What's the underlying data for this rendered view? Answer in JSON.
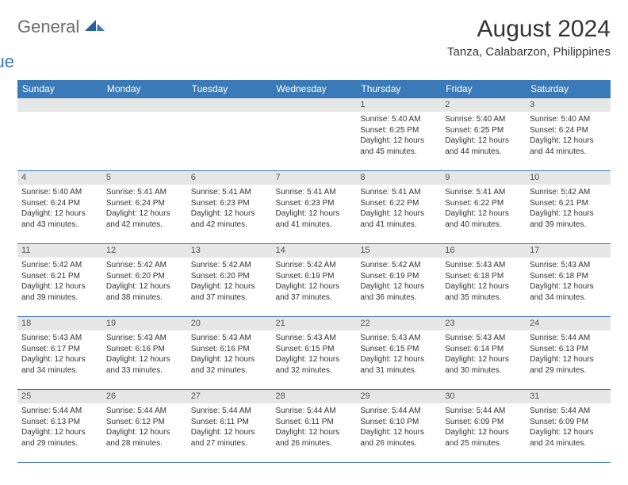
{
  "logo": {
    "general": "General",
    "blue": "Blue"
  },
  "header": {
    "title": "August 2024",
    "subtitle": "Tanza, Calabarzon, Philippines"
  },
  "colors": {
    "header_bg": "#3b7ab8",
    "header_fg": "#ffffff",
    "daynum_bg": "#e6e6e6",
    "daynum_fg": "#555555",
    "border": "#3b7ab8",
    "text": "#333333",
    "logo_gray": "#6b6b6b",
    "logo_blue": "#3b7ab8",
    "page_bg": "#ffffff"
  },
  "typography": {
    "title_fontsize": 30,
    "subtitle_fontsize": 15,
    "dayheader_fontsize": 12,
    "daynum_fontsize": 11,
    "dayinfo_fontsize": 10,
    "font_family": "Arial"
  },
  "calendar": {
    "type": "table",
    "columns": [
      "Sunday",
      "Monday",
      "Tuesday",
      "Wednesday",
      "Thursday",
      "Friday",
      "Saturday"
    ],
    "weeks": [
      [
        {
          "num": "",
          "sunrise": "",
          "sunset": "",
          "daylight": ""
        },
        {
          "num": "",
          "sunrise": "",
          "sunset": "",
          "daylight": ""
        },
        {
          "num": "",
          "sunrise": "",
          "sunset": "",
          "daylight": ""
        },
        {
          "num": "",
          "sunrise": "",
          "sunset": "",
          "daylight": ""
        },
        {
          "num": "1",
          "sunrise": "Sunrise: 5:40 AM",
          "sunset": "Sunset: 6:25 PM",
          "daylight": "Daylight: 12 hours and 45 minutes."
        },
        {
          "num": "2",
          "sunrise": "Sunrise: 5:40 AM",
          "sunset": "Sunset: 6:25 PM",
          "daylight": "Daylight: 12 hours and 44 minutes."
        },
        {
          "num": "3",
          "sunrise": "Sunrise: 5:40 AM",
          "sunset": "Sunset: 6:24 PM",
          "daylight": "Daylight: 12 hours and 44 minutes."
        }
      ],
      [
        {
          "num": "4",
          "sunrise": "Sunrise: 5:40 AM",
          "sunset": "Sunset: 6:24 PM",
          "daylight": "Daylight: 12 hours and 43 minutes."
        },
        {
          "num": "5",
          "sunrise": "Sunrise: 5:41 AM",
          "sunset": "Sunset: 6:24 PM",
          "daylight": "Daylight: 12 hours and 42 minutes."
        },
        {
          "num": "6",
          "sunrise": "Sunrise: 5:41 AM",
          "sunset": "Sunset: 6:23 PM",
          "daylight": "Daylight: 12 hours and 42 minutes."
        },
        {
          "num": "7",
          "sunrise": "Sunrise: 5:41 AM",
          "sunset": "Sunset: 6:23 PM",
          "daylight": "Daylight: 12 hours and 41 minutes."
        },
        {
          "num": "8",
          "sunrise": "Sunrise: 5:41 AM",
          "sunset": "Sunset: 6:22 PM",
          "daylight": "Daylight: 12 hours and 41 minutes."
        },
        {
          "num": "9",
          "sunrise": "Sunrise: 5:41 AM",
          "sunset": "Sunset: 6:22 PM",
          "daylight": "Daylight: 12 hours and 40 minutes."
        },
        {
          "num": "10",
          "sunrise": "Sunrise: 5:42 AM",
          "sunset": "Sunset: 6:21 PM",
          "daylight": "Daylight: 12 hours and 39 minutes."
        }
      ],
      [
        {
          "num": "11",
          "sunrise": "Sunrise: 5:42 AM",
          "sunset": "Sunset: 6:21 PM",
          "daylight": "Daylight: 12 hours and 39 minutes."
        },
        {
          "num": "12",
          "sunrise": "Sunrise: 5:42 AM",
          "sunset": "Sunset: 6:20 PM",
          "daylight": "Daylight: 12 hours and 38 minutes."
        },
        {
          "num": "13",
          "sunrise": "Sunrise: 5:42 AM",
          "sunset": "Sunset: 6:20 PM",
          "daylight": "Daylight: 12 hours and 37 minutes."
        },
        {
          "num": "14",
          "sunrise": "Sunrise: 5:42 AM",
          "sunset": "Sunset: 6:19 PM",
          "daylight": "Daylight: 12 hours and 37 minutes."
        },
        {
          "num": "15",
          "sunrise": "Sunrise: 5:42 AM",
          "sunset": "Sunset: 6:19 PM",
          "daylight": "Daylight: 12 hours and 36 minutes."
        },
        {
          "num": "16",
          "sunrise": "Sunrise: 5:43 AM",
          "sunset": "Sunset: 6:18 PM",
          "daylight": "Daylight: 12 hours and 35 minutes."
        },
        {
          "num": "17",
          "sunrise": "Sunrise: 5:43 AM",
          "sunset": "Sunset: 6:18 PM",
          "daylight": "Daylight: 12 hours and 34 minutes."
        }
      ],
      [
        {
          "num": "18",
          "sunrise": "Sunrise: 5:43 AM",
          "sunset": "Sunset: 6:17 PM",
          "daylight": "Daylight: 12 hours and 34 minutes."
        },
        {
          "num": "19",
          "sunrise": "Sunrise: 5:43 AM",
          "sunset": "Sunset: 6:16 PM",
          "daylight": "Daylight: 12 hours and 33 minutes."
        },
        {
          "num": "20",
          "sunrise": "Sunrise: 5:43 AM",
          "sunset": "Sunset: 6:16 PM",
          "daylight": "Daylight: 12 hours and 32 minutes."
        },
        {
          "num": "21",
          "sunrise": "Sunrise: 5:43 AM",
          "sunset": "Sunset: 6:15 PM",
          "daylight": "Daylight: 12 hours and 32 minutes."
        },
        {
          "num": "22",
          "sunrise": "Sunrise: 5:43 AM",
          "sunset": "Sunset: 6:15 PM",
          "daylight": "Daylight: 12 hours and 31 minutes."
        },
        {
          "num": "23",
          "sunrise": "Sunrise: 5:43 AM",
          "sunset": "Sunset: 6:14 PM",
          "daylight": "Daylight: 12 hours and 30 minutes."
        },
        {
          "num": "24",
          "sunrise": "Sunrise: 5:44 AM",
          "sunset": "Sunset: 6:13 PM",
          "daylight": "Daylight: 12 hours and 29 minutes."
        }
      ],
      [
        {
          "num": "25",
          "sunrise": "Sunrise: 5:44 AM",
          "sunset": "Sunset: 6:13 PM",
          "daylight": "Daylight: 12 hours and 29 minutes."
        },
        {
          "num": "26",
          "sunrise": "Sunrise: 5:44 AM",
          "sunset": "Sunset: 6:12 PM",
          "daylight": "Daylight: 12 hours and 28 minutes."
        },
        {
          "num": "27",
          "sunrise": "Sunrise: 5:44 AM",
          "sunset": "Sunset: 6:11 PM",
          "daylight": "Daylight: 12 hours and 27 minutes."
        },
        {
          "num": "28",
          "sunrise": "Sunrise: 5:44 AM",
          "sunset": "Sunset: 6:11 PM",
          "daylight": "Daylight: 12 hours and 26 minutes."
        },
        {
          "num": "29",
          "sunrise": "Sunrise: 5:44 AM",
          "sunset": "Sunset: 6:10 PM",
          "daylight": "Daylight: 12 hours and 26 minutes."
        },
        {
          "num": "30",
          "sunrise": "Sunrise: 5:44 AM",
          "sunset": "Sunset: 6:09 PM",
          "daylight": "Daylight: 12 hours and 25 minutes."
        },
        {
          "num": "31",
          "sunrise": "Sunrise: 5:44 AM",
          "sunset": "Sunset: 6:09 PM",
          "daylight": "Daylight: 12 hours and 24 minutes."
        }
      ]
    ]
  }
}
